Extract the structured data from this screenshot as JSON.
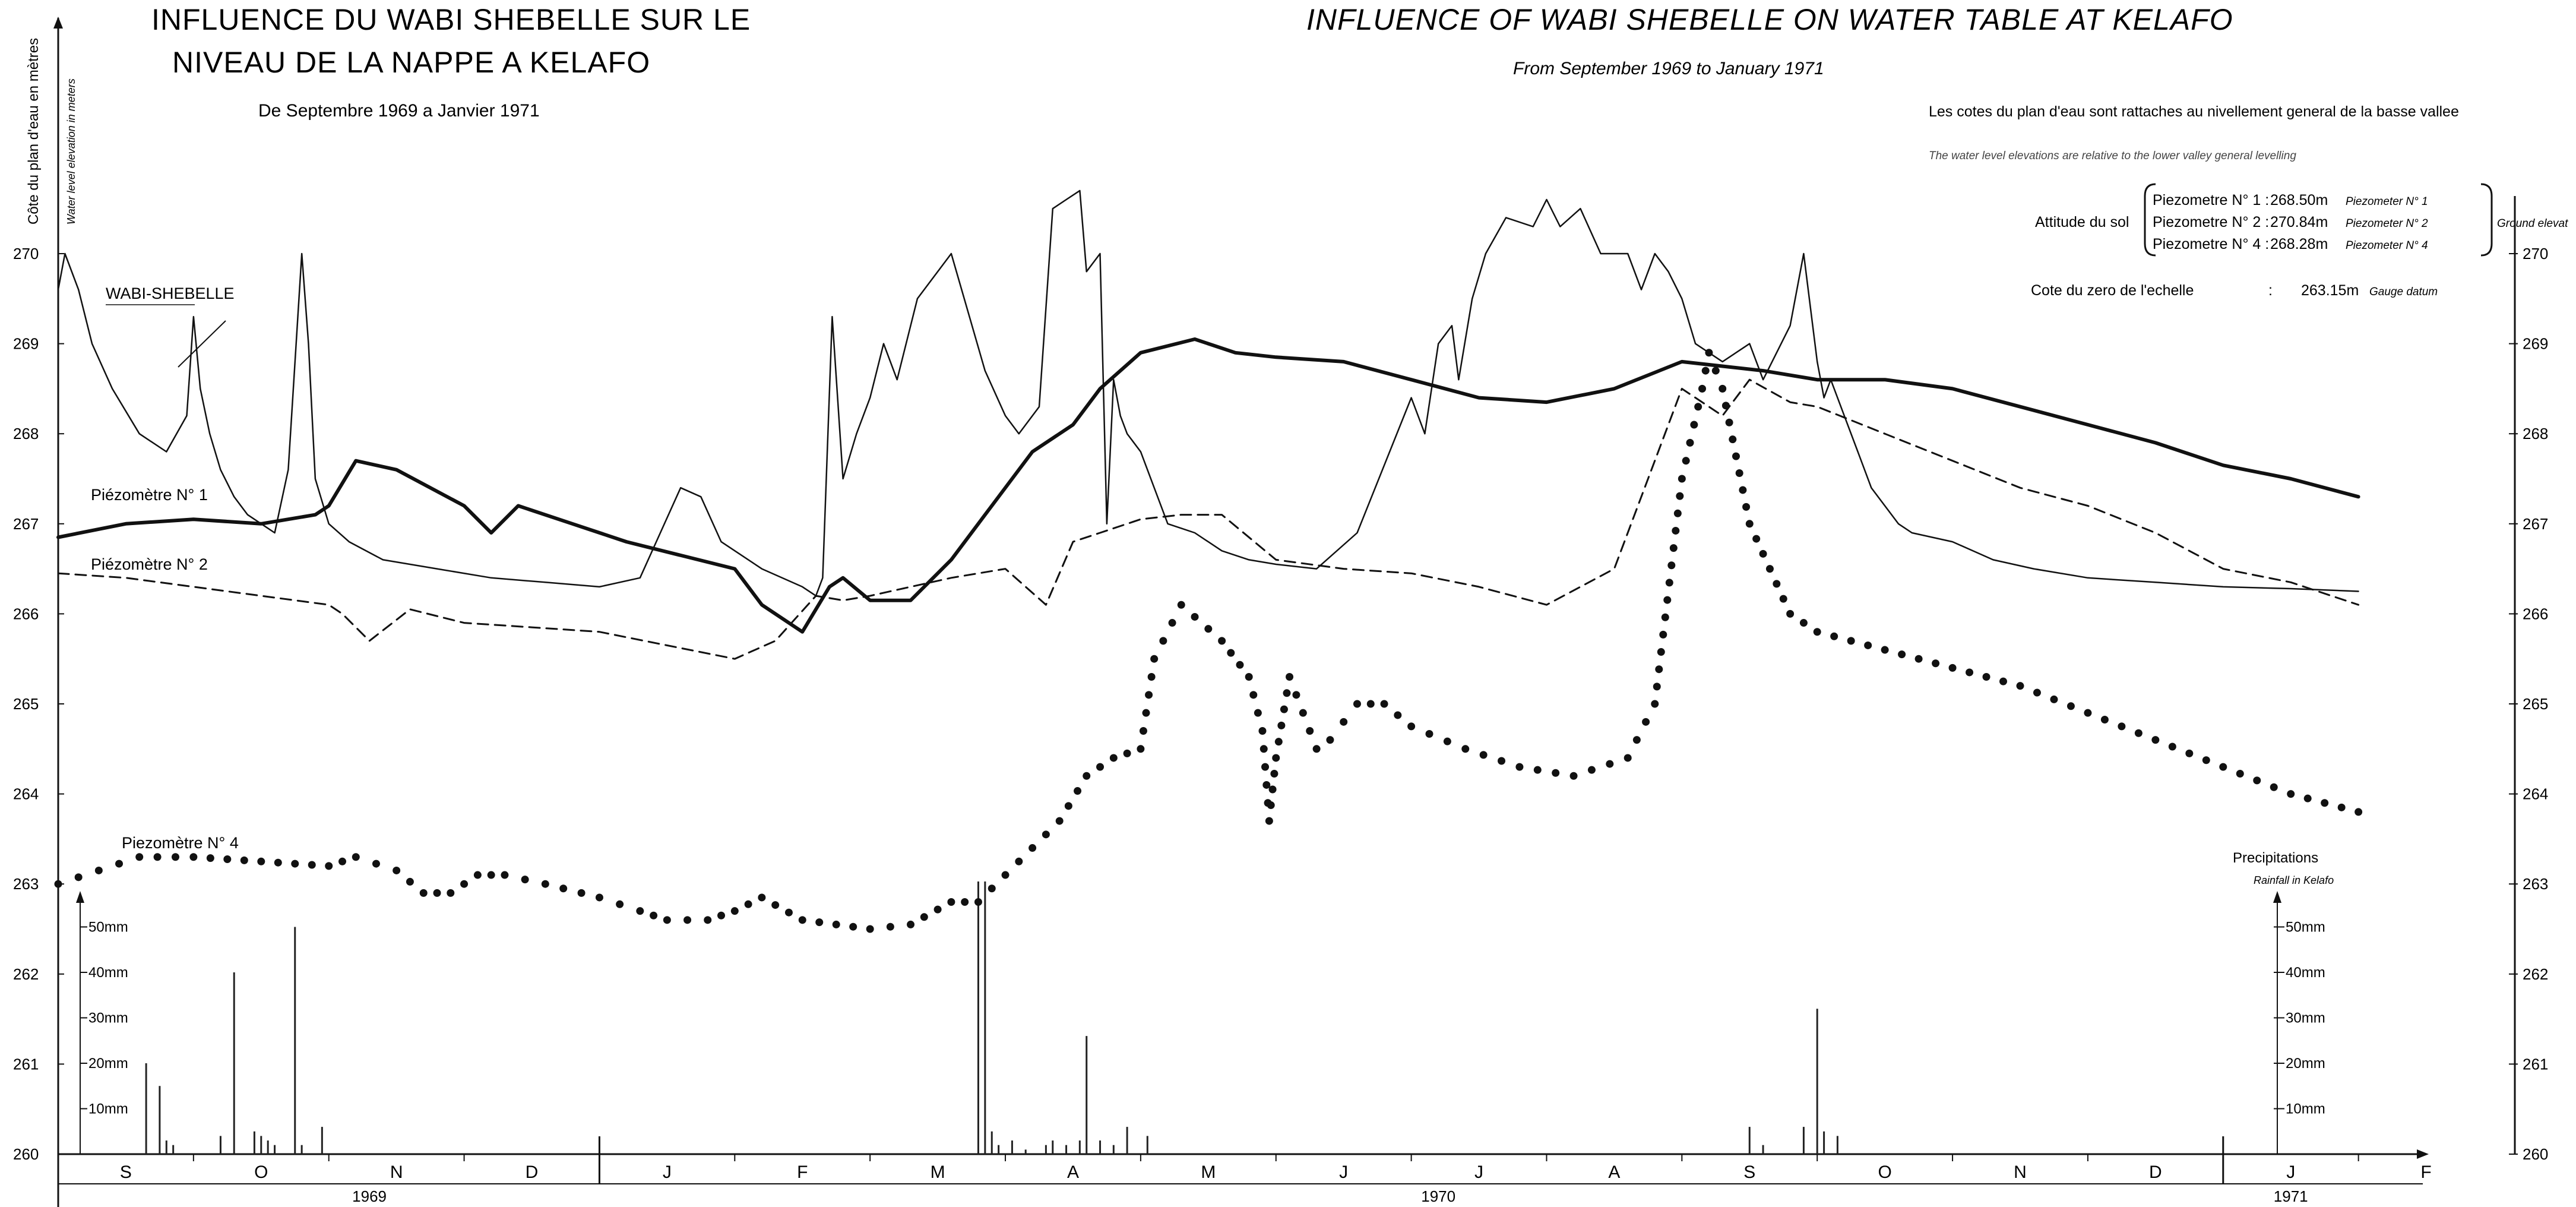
{
  "titles": {
    "fr_line1": "INFLUENCE DU WABI SHEBELLE SUR LE",
    "fr_line2": "NIVEAU DE LA NAPPE A KELAFO",
    "fr_period": "De Septembre 1969 a Janvier 1971",
    "en_title": "INFLUENCE OF WABI SHEBELLE ON WATER TABLE AT KELAFO",
    "en_period": "From  September 1969 to January 1971"
  },
  "notes": {
    "fr_ref": "Les cotes du plan d'eau sont rattaches au    nivellement general de la basse vallee",
    "en_ref": "The  water  level  elevations  are  relative  to the lower valley  general  levelling",
    "attitude_label": "Attitude du sol",
    "piezometers": [
      {
        "name": "Piezometre N° 1 :",
        "value": "268.50m",
        "en": "Piezometer  N° 1"
      },
      {
        "name": "Piezometre N° 2 :",
        "value": "270.84m",
        "en": "Piezometer  N° 2"
      },
      {
        "name": "Piezometre N° 4 :",
        "value": "268.28m",
        "en": "Piezometer  N° 4"
      }
    ],
    "ground_label": "Ground elevat",
    "gauge_label": "Cote du zero de l'echelle",
    "gauge_sep": ":",
    "gauge_value": "263.15m",
    "gauge_en": "Gauge datum"
  },
  "chart_data": {
    "type": "line",
    "title": "INFLUENCE DU WABI SHEBELLE SUR LE NIVEAU DE LA NAPPE A KELAFO",
    "ylabel_fr": "Côte du plan d'eau en mètres",
    "ylabel_en": "Water level elevation in meters",
    "ylim": [
      260,
      270
    ],
    "yticks": [
      "260",
      "261",
      "262",
      "263",
      "264",
      "265",
      "266",
      "267",
      "268",
      "269",
      "270"
    ],
    "x_unit": "months since 1 Sep 1969",
    "xlim": [
      0,
      17.3
    ],
    "months": [
      "S",
      "O",
      "N",
      "D",
      "J",
      "F",
      "M",
      "A",
      "M",
      "J",
      "J",
      "A",
      "S",
      "O",
      "N",
      "D",
      "J",
      "F"
    ],
    "years": [
      {
        "label": "1969",
        "at": 2.3
      },
      {
        "label": "1970",
        "at": 10.2
      },
      {
        "label": "1971",
        "at": 16.5
      }
    ],
    "rain_axis": {
      "ticks": [
        "10mm",
        "20mm",
        "30mm",
        "40mm",
        "50mm"
      ],
      "title_fr": "Precipitations",
      "title_en": "Rainfall in Kelafo"
    },
    "series": [
      {
        "name": "WABI-SHEBELLE",
        "style": "thin",
        "x": [
          0,
          0.05,
          0.15,
          0.25,
          0.4,
          0.6,
          0.8,
          0.95,
          1.0,
          1.05,
          1.12,
          1.2,
          1.3,
          1.35,
          1.4,
          1.5,
          1.6,
          1.7,
          1.8,
          1.85,
          1.9,
          2.0,
          2.15,
          2.4,
          2.8,
          3.2,
          3.6,
          4.0,
          4.3,
          4.45,
          4.6,
          4.75,
          4.9,
          5.2,
          5.5,
          5.6,
          5.65,
          5.72,
          5.8,
          5.9,
          6.0,
          6.1,
          6.2,
          6.35,
          6.6,
          6.85,
          7.0,
          7.1,
          7.25,
          7.35,
          7.45,
          7.55,
          7.6,
          7.7,
          7.75,
          7.8,
          7.85,
          7.9,
          8.0,
          8.1,
          8.2,
          8.4,
          8.6,
          8.8,
          9.0,
          9.3,
          9.6,
          10.0,
          10.1,
          10.2,
          10.3,
          10.35,
          10.45,
          10.55,
          10.7,
          10.9,
          11.0,
          11.1,
          11.25,
          11.4,
          11.6,
          11.7,
          11.8,
          11.9,
          12.0,
          12.1,
          12.3,
          12.5,
          12.6,
          12.8,
          12.9,
          13.0,
          13.05,
          13.1,
          13.2,
          13.3,
          13.4,
          13.5,
          13.6,
          13.7,
          14.0,
          14.3,
          14.6,
          15.0,
          15.5,
          16.0,
          16.5,
          17.0
        ],
        "y": [
          269.6,
          270.0,
          269.6,
          269.0,
          268.5,
          268.0,
          267.8,
          268.2,
          269.3,
          268.5,
          268.0,
          267.6,
          267.3,
          267.2,
          267.1,
          267.0,
          266.9,
          267.6,
          270.0,
          269.0,
          267.5,
          267.0,
          266.8,
          266.6,
          266.5,
          266.4,
          266.35,
          266.3,
          266.4,
          266.9,
          267.4,
          267.3,
          266.8,
          266.5,
          266.3,
          266.2,
          266.4,
          269.3,
          267.5,
          268.0,
          268.4,
          269.0,
          268.6,
          269.5,
          270.0,
          268.7,
          268.2,
          268.0,
          268.3,
          270.5,
          270.6,
          270.7,
          269.8,
          270.0,
          267.0,
          268.6,
          268.2,
          268.0,
          267.8,
          267.4,
          267.0,
          266.9,
          266.7,
          266.6,
          266.55,
          266.5,
          266.9,
          268.4,
          268.0,
          269.0,
          269.2,
          268.6,
          269.5,
          270.0,
          270.4,
          270.3,
          270.6,
          270.3,
          270.5,
          270.0,
          270.0,
          269.6,
          270.0,
          269.8,
          269.5,
          269.0,
          268.8,
          269.0,
          268.6,
          269.2,
          270.0,
          268.8,
          268.4,
          268.6,
          268.2,
          267.8,
          267.4,
          267.2,
          267.0,
          266.9,
          266.8,
          266.6,
          266.5,
          266.4,
          266.35,
          266.3,
          266.28,
          266.25
        ]
      },
      {
        "name": "Piézomètre N° 1",
        "style": "thick",
        "x": [
          0,
          0.5,
          1.0,
          1.5,
          1.9,
          2.0,
          2.2,
          2.5,
          3.0,
          3.2,
          3.4,
          3.8,
          4.2,
          4.6,
          5.0,
          5.2,
          5.5,
          5.7,
          5.8,
          6.0,
          6.3,
          6.6,
          6.9,
          7.2,
          7.5,
          7.7,
          8.0,
          8.4,
          8.7,
          9.0,
          9.5,
          10.0,
          10.5,
          11.0,
          11.5,
          12.0,
          12.3,
          12.6,
          13.0,
          13.5,
          14.0,
          14.5,
          15.0,
          15.5,
          16.0,
          16.5,
          17.0
        ],
        "y": [
          266.85,
          267.0,
          267.05,
          267.0,
          267.1,
          267.2,
          267.7,
          267.6,
          267.2,
          266.9,
          267.2,
          267.0,
          266.8,
          266.65,
          266.5,
          266.1,
          265.8,
          266.3,
          266.4,
          266.15,
          266.15,
          266.6,
          267.2,
          267.8,
          268.1,
          268.5,
          268.9,
          269.05,
          268.9,
          268.85,
          268.8,
          268.6,
          268.4,
          268.35,
          268.5,
          268.8,
          268.75,
          268.7,
          268.6,
          268.6,
          268.5,
          268.3,
          268.1,
          267.9,
          267.65,
          267.5,
          267.3
        ]
      },
      {
        "name": "Piézomètre N° 2",
        "style": "dashed",
        "x": [
          0,
          0.5,
          1.0,
          1.5,
          2.0,
          2.1,
          2.3,
          2.6,
          3.0,
          3.5,
          4.0,
          4.5,
          5.0,
          5.3,
          5.6,
          5.8,
          6.0,
          6.3,
          6.6,
          7.0,
          7.3,
          7.5,
          7.7,
          8.0,
          8.3,
          8.6,
          9.0,
          9.5,
          10.0,
          10.5,
          11.0,
          11.5,
          12.0,
          12.3,
          12.5,
          12.8,
          13.0,
          13.5,
          14.0,
          14.5,
          15.0,
          15.5,
          16.0,
          16.5,
          17.0
        ],
        "y": [
          266.45,
          266.4,
          266.3,
          266.2,
          266.1,
          266.0,
          265.7,
          266.05,
          265.9,
          265.85,
          265.8,
          265.65,
          265.5,
          265.7,
          266.2,
          266.15,
          266.2,
          266.3,
          266.4,
          266.5,
          266.1,
          266.8,
          266.9,
          267.05,
          267.1,
          267.1,
          266.6,
          266.5,
          266.45,
          266.3,
          266.1,
          266.5,
          268.5,
          268.2,
          268.6,
          268.35,
          268.3,
          268.0,
          267.7,
          267.4,
          267.2,
          266.9,
          266.5,
          266.35,
          266.1
        ]
      },
      {
        "name": "Piezomètre N° 4",
        "style": "dotted",
        "x": [
          0,
          0.3,
          0.6,
          1.0,
          1.5,
          2.0,
          2.2,
          2.5,
          2.7,
          2.9,
          3.1,
          3.3,
          3.6,
          4.0,
          4.3,
          4.5,
          4.8,
          5.0,
          5.2,
          5.5,
          6.0,
          6.3,
          6.6,
          6.8,
          7.0,
          7.2,
          7.4,
          7.6,
          7.8,
          8.0,
          8.1,
          8.3,
          8.6,
          8.8,
          8.9,
          8.95,
          9.0,
          9.1,
          9.2,
          9.3,
          9.4,
          9.5,
          9.6,
          9.8,
          10.0,
          10.4,
          10.8,
          11.2,
          11.6,
          11.8,
          12.0,
          12.15,
          12.2,
          12.3,
          12.5,
          12.8,
          13.0,
          13.5,
          14.0,
          14.5,
          15.0,
          15.5,
          16.0,
          16.5,
          17.0
        ],
        "y": [
          263.0,
          263.15,
          263.3,
          263.3,
          263.25,
          263.2,
          263.3,
          263.15,
          262.9,
          262.9,
          263.1,
          263.1,
          263.0,
          262.85,
          262.7,
          262.6,
          262.6,
          262.7,
          262.85,
          262.6,
          262.5,
          262.55,
          262.8,
          262.8,
          263.1,
          263.4,
          263.7,
          264.2,
          264.4,
          264.5,
          265.5,
          266.1,
          265.7,
          265.3,
          264.7,
          263.7,
          264.4,
          265.3,
          264.9,
          264.5,
          264.6,
          264.8,
          265.0,
          265.0,
          264.75,
          264.5,
          264.3,
          264.2,
          264.4,
          265.0,
          267.5,
          268.5,
          268.9,
          268.5,
          267.0,
          266.0,
          265.8,
          265.6,
          265.4,
          265.2,
          264.9,
          264.6,
          264.3,
          264.0,
          263.8
        ]
      }
    ],
    "rainfall": {
      "x": [
        0.65,
        0.75,
        0.8,
        0.85,
        1.2,
        1.3,
        1.45,
        1.5,
        1.55,
        1.6,
        1.75,
        1.8,
        1.95,
        6.8,
        6.85,
        6.9,
        6.95,
        7.05,
        7.15,
        7.3,
        7.35,
        7.45,
        7.55,
        7.6,
        7.7,
        7.8,
        7.9,
        8.05,
        12.5,
        12.6,
        12.9,
        13.0,
        13.05,
        13.15
      ],
      "mm": [
        20,
        15,
        3,
        2,
        4,
        40,
        5,
        4,
        3,
        2,
        50,
        2,
        6,
        60,
        60,
        5,
        2,
        3,
        1,
        2,
        3,
        2,
        3,
        26,
        3,
        2,
        6,
        4,
        6,
        2,
        6,
        32,
        5,
        4
      ]
    }
  }
}
